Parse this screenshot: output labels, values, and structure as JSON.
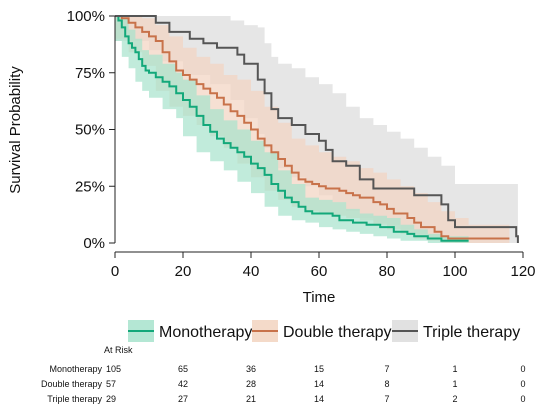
{
  "chart_data": {
    "type": "line",
    "subtype": "kaplan-meier survival curve with confidence bands",
    "xlabel": "Time",
    "ylabel": "Survival Probability",
    "xlim": [
      0,
      120
    ],
    "ylim": [
      0,
      1
    ],
    "x_ticks": [
      0,
      20,
      40,
      60,
      80,
      100,
      120
    ],
    "y_ticks": [
      0,
      0.25,
      0.5,
      0.75,
      1
    ],
    "x_tick_labels": [
      "0",
      "20",
      "40",
      "60",
      "80",
      "100",
      "120"
    ],
    "y_tick_labels": [
      "0%",
      "25%",
      "50%",
      "75%",
      "100%"
    ],
    "legend_position": "bottom",
    "series": [
      {
        "name": "Monotherapy",
        "color": "#13a87a",
        "band_color": "#a7e3cc",
        "steps": [
          [
            0,
            1
          ],
          [
            1,
            0.98
          ],
          [
            2,
            0.95
          ],
          [
            3,
            0.91
          ],
          [
            4,
            0.88
          ],
          [
            5,
            0.86
          ],
          [
            6,
            0.84
          ],
          [
            7,
            0.81
          ],
          [
            8,
            0.78
          ],
          [
            9,
            0.76
          ],
          [
            10,
            0.75
          ],
          [
            12,
            0.73
          ],
          [
            14,
            0.71
          ],
          [
            16,
            0.69
          ],
          [
            18,
            0.66
          ],
          [
            20,
            0.63
          ],
          [
            22,
            0.6
          ],
          [
            24,
            0.56
          ],
          [
            26,
            0.52
          ],
          [
            28,
            0.49
          ],
          [
            30,
            0.46
          ],
          [
            32,
            0.44
          ],
          [
            34,
            0.42
          ],
          [
            36,
            0.4
          ],
          [
            38,
            0.38
          ],
          [
            40,
            0.35
          ],
          [
            42,
            0.33
          ],
          [
            44,
            0.3
          ],
          [
            46,
            0.26
          ],
          [
            48,
            0.23
          ],
          [
            50,
            0.2
          ],
          [
            52,
            0.18
          ],
          [
            54,
            0.16
          ],
          [
            56,
            0.14
          ],
          [
            58,
            0.13
          ],
          [
            62,
            0.13
          ],
          [
            64,
            0.12
          ],
          [
            66,
            0.1
          ],
          [
            70,
            0.09
          ],
          [
            74,
            0.08
          ],
          [
            78,
            0.07
          ],
          [
            82,
            0.05
          ],
          [
            86,
            0.04
          ],
          [
            88,
            0.03
          ],
          [
            92,
            0.02
          ],
          [
            96,
            0.01
          ],
          [
            102,
            0.01
          ],
          [
            104,
            0.01
          ]
        ],
        "upper": [
          [
            0,
            1
          ],
          [
            2,
            0.99
          ],
          [
            4,
            0.94
          ],
          [
            6,
            0.9
          ],
          [
            8,
            0.85
          ],
          [
            10,
            0.83
          ],
          [
            14,
            0.79
          ],
          [
            18,
            0.75
          ],
          [
            20,
            0.72
          ],
          [
            24,
            0.65
          ],
          [
            28,
            0.59
          ],
          [
            32,
            0.54
          ],
          [
            36,
            0.5
          ],
          [
            40,
            0.45
          ],
          [
            44,
            0.4
          ],
          [
            48,
            0.32
          ],
          [
            52,
            0.26
          ],
          [
            56,
            0.2
          ],
          [
            60,
            0.19
          ],
          [
            64,
            0.18
          ],
          [
            68,
            0.15
          ],
          [
            72,
            0.13
          ],
          [
            76,
            0.12
          ],
          [
            80,
            0.11
          ],
          [
            84,
            0.08
          ],
          [
            88,
            0.06
          ],
          [
            92,
            0.04
          ],
          [
            96,
            0.03
          ],
          [
            104,
            0.03
          ]
        ],
        "lower": [
          [
            0,
            1
          ],
          [
            2,
            0.89
          ],
          [
            4,
            0.82
          ],
          [
            6,
            0.77
          ],
          [
            8,
            0.71
          ],
          [
            10,
            0.67
          ],
          [
            14,
            0.64
          ],
          [
            18,
            0.59
          ],
          [
            20,
            0.55
          ],
          [
            24,
            0.47
          ],
          [
            28,
            0.4
          ],
          [
            32,
            0.36
          ],
          [
            36,
            0.32
          ],
          [
            40,
            0.27
          ],
          [
            44,
            0.22
          ],
          [
            48,
            0.16
          ],
          [
            52,
            0.12
          ],
          [
            56,
            0.1
          ],
          [
            60,
            0.09
          ],
          [
            64,
            0.07
          ],
          [
            68,
            0.06
          ],
          [
            72,
            0.05
          ],
          [
            76,
            0.04
          ],
          [
            80,
            0.03
          ],
          [
            84,
            0.02
          ],
          [
            88,
            0.01
          ],
          [
            92,
            0.01
          ],
          [
            96,
            0
          ],
          [
            104,
            0
          ]
        ]
      },
      {
        "name": "Double therapy",
        "color": "#c8724a",
        "band_color": "#f2d3c0",
        "steps": [
          [
            0,
            1
          ],
          [
            2,
            0.99
          ],
          [
            4,
            0.97
          ],
          [
            6,
            0.95
          ],
          [
            8,
            0.93
          ],
          [
            10,
            0.91
          ],
          [
            12,
            0.89
          ],
          [
            14,
            0.84
          ],
          [
            16,
            0.8
          ],
          [
            18,
            0.76
          ],
          [
            20,
            0.74
          ],
          [
            22,
            0.72
          ],
          [
            24,
            0.7
          ],
          [
            26,
            0.68
          ],
          [
            28,
            0.66
          ],
          [
            30,
            0.64
          ],
          [
            32,
            0.61
          ],
          [
            34,
            0.58
          ],
          [
            36,
            0.56
          ],
          [
            38,
            0.53
          ],
          [
            40,
            0.5
          ],
          [
            42,
            0.46
          ],
          [
            44,
            0.43
          ],
          [
            46,
            0.4
          ],
          [
            48,
            0.37
          ],
          [
            50,
            0.34
          ],
          [
            52,
            0.31
          ],
          [
            54,
            0.28
          ],
          [
            56,
            0.27
          ],
          [
            58,
            0.26
          ],
          [
            60,
            0.25
          ],
          [
            62,
            0.24
          ],
          [
            66,
            0.23
          ],
          [
            68,
            0.22
          ],
          [
            70,
            0.21
          ],
          [
            72,
            0.2
          ],
          [
            76,
            0.18
          ],
          [
            78,
            0.17
          ],
          [
            80,
            0.15
          ],
          [
            82,
            0.13
          ],
          [
            86,
            0.11
          ],
          [
            88,
            0.09
          ],
          [
            90,
            0.07
          ],
          [
            94,
            0.05
          ],
          [
            96,
            0.03
          ],
          [
            98,
            0.02
          ],
          [
            102,
            0.02
          ],
          [
            116,
            0.02
          ]
        ],
        "upper": [
          [
            0,
            1
          ],
          [
            4,
            1
          ],
          [
            8,
            0.99
          ],
          [
            12,
            0.96
          ],
          [
            16,
            0.91
          ],
          [
            20,
            0.86
          ],
          [
            24,
            0.82
          ],
          [
            28,
            0.79
          ],
          [
            32,
            0.74
          ],
          [
            36,
            0.72
          ],
          [
            40,
            0.67
          ],
          [
            44,
            0.6
          ],
          [
            48,
            0.53
          ],
          [
            52,
            0.46
          ],
          [
            56,
            0.43
          ],
          [
            60,
            0.4
          ],
          [
            64,
            0.38
          ],
          [
            68,
            0.36
          ],
          [
            72,
            0.33
          ],
          [
            76,
            0.31
          ],
          [
            80,
            0.28
          ],
          [
            84,
            0.25
          ],
          [
            88,
            0.22
          ],
          [
            92,
            0.18
          ],
          [
            96,
            0.14
          ],
          [
            100,
            0.11
          ],
          [
            104,
            0.08
          ],
          [
            116,
            0.08
          ]
        ],
        "lower": [
          [
            0,
            1
          ],
          [
            4,
            0.9
          ],
          [
            8,
            0.84
          ],
          [
            12,
            0.78
          ],
          [
            16,
            0.67
          ],
          [
            20,
            0.6
          ],
          [
            24,
            0.56
          ],
          [
            28,
            0.52
          ],
          [
            32,
            0.47
          ],
          [
            36,
            0.42
          ],
          [
            40,
            0.35
          ],
          [
            44,
            0.29
          ],
          [
            48,
            0.23
          ],
          [
            52,
            0.19
          ],
          [
            56,
            0.16
          ],
          [
            60,
            0.14
          ],
          [
            64,
            0.13
          ],
          [
            68,
            0.12
          ],
          [
            72,
            0.11
          ],
          [
            76,
            0.1
          ],
          [
            80,
            0.08
          ],
          [
            84,
            0.06
          ],
          [
            88,
            0.04
          ],
          [
            92,
            0.02
          ],
          [
            96,
            0.01
          ],
          [
            100,
            0
          ],
          [
            116,
            0
          ]
        ]
      },
      {
        "name": "Triple therapy",
        "color": "#555555",
        "band_color": "#dcdcdc",
        "steps": [
          [
            0,
            1
          ],
          [
            10,
            1
          ],
          [
            12,
            0.97
          ],
          [
            16,
            0.93
          ],
          [
            22,
            0.9
          ],
          [
            26,
            0.88
          ],
          [
            30,
            0.86
          ],
          [
            36,
            0.83
          ],
          [
            38,
            0.79
          ],
          [
            42,
            0.72
          ],
          [
            44,
            0.66
          ],
          [
            46,
            0.59
          ],
          [
            48,
            0.55
          ],
          [
            52,
            0.52
          ],
          [
            56,
            0.48
          ],
          [
            60,
            0.45
          ],
          [
            62,
            0.41
          ],
          [
            64,
            0.36
          ],
          [
            68,
            0.34
          ],
          [
            72,
            0.28
          ],
          [
            76,
            0.24
          ],
          [
            80,
            0.24
          ],
          [
            86,
            0.24
          ],
          [
            88,
            0.21
          ],
          [
            96,
            0.17
          ],
          [
            98,
            0.1
          ],
          [
            100,
            0.07
          ],
          [
            102,
            0.07
          ],
          [
            116,
            0.07
          ],
          [
            118,
            0.03
          ],
          [
            118.5,
            0
          ]
        ],
        "upper": [
          [
            0,
            1
          ],
          [
            10,
            1
          ],
          [
            14,
            1
          ],
          [
            20,
            1
          ],
          [
            28,
            1
          ],
          [
            34,
            0.98
          ],
          [
            38,
            0.96
          ],
          [
            42,
            0.95
          ],
          [
            44,
            0.88
          ],
          [
            46,
            0.82
          ],
          [
            48,
            0.79
          ],
          [
            52,
            0.77
          ],
          [
            56,
            0.73
          ],
          [
            60,
            0.7
          ],
          [
            64,
            0.66
          ],
          [
            68,
            0.6
          ],
          [
            72,
            0.55
          ],
          [
            76,
            0.52
          ],
          [
            80,
            0.49
          ],
          [
            84,
            0.46
          ],
          [
            88,
            0.42
          ],
          [
            92,
            0.38
          ],
          [
            96,
            0.34
          ],
          [
            100,
            0.26
          ],
          [
            116,
            0.26
          ],
          [
            118.5,
            0.26
          ]
        ],
        "lower": [
          [
            0,
            1
          ],
          [
            10,
            0.89
          ],
          [
            14,
            0.85
          ],
          [
            20,
            0.8
          ],
          [
            28,
            0.74
          ],
          [
            34,
            0.7
          ],
          [
            38,
            0.63
          ],
          [
            42,
            0.55
          ],
          [
            44,
            0.48
          ],
          [
            46,
            0.42
          ],
          [
            48,
            0.37
          ],
          [
            52,
            0.33
          ],
          [
            56,
            0.29
          ],
          [
            60,
            0.25
          ],
          [
            64,
            0.21
          ],
          [
            68,
            0.18
          ],
          [
            72,
            0.14
          ],
          [
            76,
            0.11
          ],
          [
            80,
            0.09
          ],
          [
            84,
            0.08
          ],
          [
            88,
            0.06
          ],
          [
            92,
            0.04
          ],
          [
            96,
            0.02
          ],
          [
            100,
            0.01
          ],
          [
            116,
            0
          ],
          [
            118.5,
            0
          ]
        ]
      }
    ],
    "risk_table": {
      "title": "At Risk",
      "times": [
        0,
        20,
        40,
        60,
        80,
        100,
        120
      ],
      "rows": [
        {
          "label": "Monotherapy",
          "values": [
            105,
            65,
            36,
            15,
            7,
            1,
            0
          ]
        },
        {
          "label": "Double therapy",
          "values": [
            57,
            42,
            28,
            14,
            8,
            1,
            0
          ]
        },
        {
          "label": "Triple therapy",
          "values": [
            29,
            27,
            21,
            14,
            7,
            2,
            0
          ]
        }
      ]
    }
  }
}
